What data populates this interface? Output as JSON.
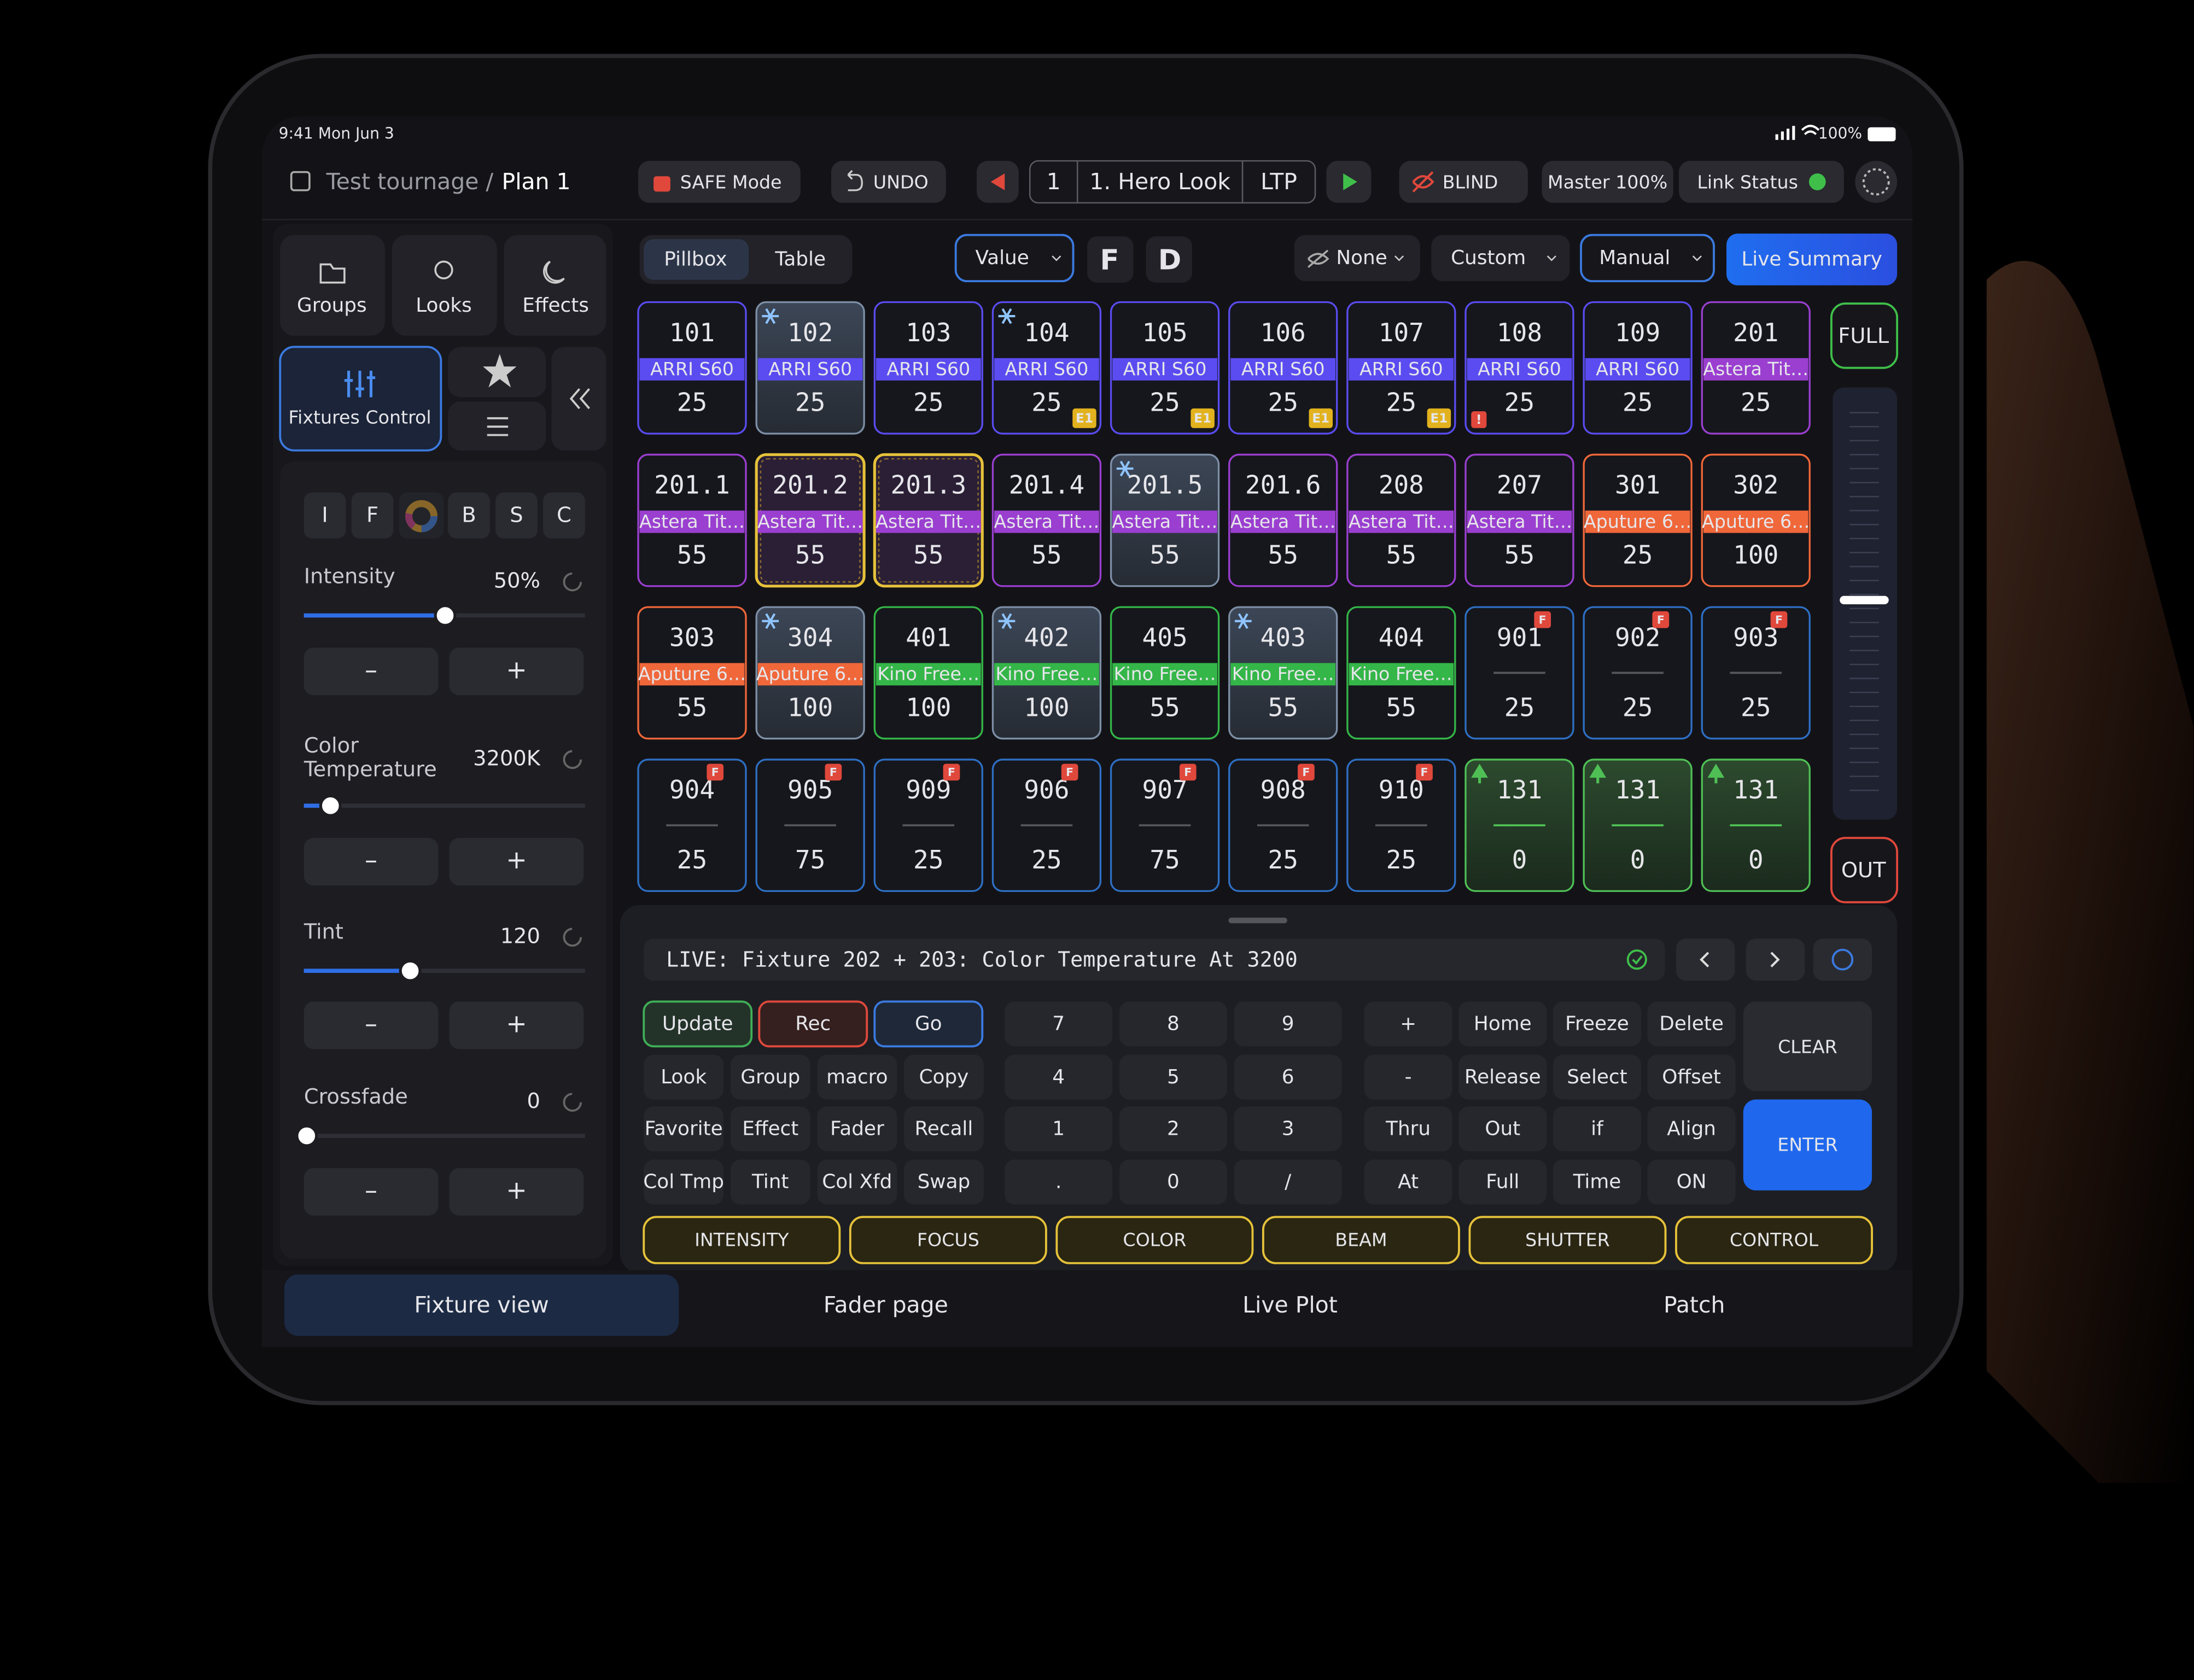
{
  "status": {
    "time": "9:41 Mon Jun 3",
    "battery": "100%"
  },
  "header": {
    "breadcrumb": "Test tournage /",
    "plan": "Plan 1",
    "safe_mode": "SAFE Mode",
    "undo": "UNDO",
    "cue_number": "1",
    "cue_name": "1. Hero Look",
    "mode": "LTP",
    "blind": "BLIND",
    "master": "Master 100%",
    "link_status": "Link Status"
  },
  "sidebar": {
    "nav": [
      "Groups",
      "Looks",
      "Effects"
    ],
    "active": "Fixtures Control",
    "tabs": [
      "I",
      "F",
      "B",
      "S",
      "C"
    ],
    "controls": [
      {
        "label": "Intensity",
        "value": "50%"
      },
      {
        "label": "Color Temperature",
        "value": "3200K"
      },
      {
        "label": "Tint",
        "value": "120"
      },
      {
        "label": "Crossfade",
        "value": "0"
      }
    ],
    "decrement": "–",
    "increment": "+"
  },
  "toolbar": {
    "views": [
      "Pillbox",
      "Table"
    ],
    "value": "Value",
    "flag_f": "F",
    "flag_d": "D",
    "none": "None",
    "custom": "Custom",
    "manual": "Manual",
    "live_summary": "Live Summary"
  },
  "fixtures": [
    {
      "id": "101",
      "type": "ARRI S60",
      "value": 25,
      "color": "#5a4cf0"
    },
    {
      "id": "102",
      "type": "ARRI S60",
      "value": 25,
      "color": "#5a4cf0"
    },
    {
      "id": "103",
      "type": "ARRI S60",
      "value": 25,
      "color": "#5a4cf0"
    },
    {
      "id": "104",
      "type": "ARRI S60",
      "value": 25,
      "color": "#5a4cf0",
      "badge": "E1"
    },
    {
      "id": "105",
      "type": "ARRI S60",
      "value": 25,
      "color": "#5a4cf0",
      "badge": "E1"
    },
    {
      "id": "106",
      "type": "ARRI S60",
      "value": 25,
      "color": "#5a4cf0",
      "badge": "E1"
    },
    {
      "id": "107",
      "type": "ARRI S60",
      "value": 25,
      "color": "#5a4cf0",
      "badge": "E1"
    },
    {
      "id": "108",
      "type": "ARRI S60",
      "value": 25,
      "color": "#5a4cf0",
      "badge": "!"
    },
    {
      "id": "109",
      "type": "ARRI S60",
      "value": 25,
      "color": "#5a4cf0"
    },
    {
      "id": "201",
      "type": "Astera Tit…",
      "value": 25,
      "color": "#9a3fd0"
    },
    {
      "id": "201.1",
      "type": "Astera Tit…",
      "value": 55,
      "color": "#9a3fd0"
    },
    {
      "id": "201.2",
      "type": "Astera Tit…",
      "value": 55,
      "color": "#9a3fd0"
    },
    {
      "id": "201.3",
      "type": "Astera Tit…",
      "value": 55,
      "color": "#9a3fd0"
    },
    {
      "id": "201.4",
      "type": "Astera Tit…",
      "value": 55,
      "color": "#9a3fd0"
    },
    {
      "id": "201.5",
      "type": "Astera Tit…",
      "value": 55,
      "color": "#9a3fd0"
    },
    {
      "id": "201.6",
      "type": "Astera Tit…",
      "value": 55,
      "color": "#9a3fd0"
    },
    {
      "id": "208",
      "type": "Astera Tit…",
      "value": 55,
      "color": "#9a3fd0"
    },
    {
      "id": "207",
      "type": "Astera Tit…",
      "value": 55,
      "color": "#9a3fd0"
    },
    {
      "id": "301",
      "type": "Aputure 6…",
      "value": 25,
      "color": "#f0673a"
    },
    {
      "id": "302",
      "type": "Aputure 6…",
      "value": 100,
      "color": "#f0673a"
    },
    {
      "id": "303",
      "type": "Aputure 6…",
      "value": 55,
      "color": "#f0673a"
    },
    {
      "id": "304",
      "type": "Aputure 6…",
      "value": 100,
      "color": "#f0673a"
    },
    {
      "id": "401",
      "type": "Kino Free…",
      "value": 100,
      "color": "#34b648"
    },
    {
      "id": "402",
      "type": "Kino Free…",
      "value": 100,
      "color": "#34b648"
    },
    {
      "id": "405",
      "type": "Kino Free…",
      "value": 55,
      "color": "#34b648"
    },
    {
      "id": "403",
      "type": "Kino Free…",
      "value": 55,
      "color": "#34b648"
    },
    {
      "id": "404",
      "type": "Kino Free…",
      "value": 55,
      "color": "#34b648"
    },
    {
      "id": "901",
      "value": 25,
      "color": "#2e6fc4",
      "badge": "F"
    },
    {
      "id": "902",
      "value": 25,
      "color": "#2e6fc4",
      "badge": "F"
    },
    {
      "id": "903",
      "value": 25,
      "color": "#2e6fc4",
      "badge": "F"
    },
    {
      "id": "904",
      "value": 25,
      "color": "#2e6fc4",
      "badge": "F"
    },
    {
      "id": "905",
      "value": 75,
      "color": "#2e6fc4",
      "badge": "F"
    },
    {
      "id": "909",
      "value": 25,
      "color": "#2e6fc4",
      "badge": "F"
    },
    {
      "id": "906",
      "value": 25,
      "color": "#2e6fc4",
      "badge": "F"
    },
    {
      "id": "907",
      "value": 75,
      "color": "#2e6fc4",
      "badge": "F"
    },
    {
      "id": "908",
      "value": 25,
      "color": "#2e6fc4",
      "badge": "F"
    },
    {
      "id": "910",
      "value": 25,
      "color": "#2e6fc4",
      "badge": "F"
    },
    {
      "id": "131",
      "value": 0,
      "color": "#4fbf55"
    },
    {
      "id": "131",
      "value": 0,
      "color": "#4fbf55"
    },
    {
      "id": "131",
      "value": 0,
      "color": "#4fbf55"
    }
  ],
  "fader": {
    "full": "FULL",
    "out": "OUT"
  },
  "command": {
    "line": "LIVE: Fixture 202 + 203: Color Temperature At 3200"
  },
  "keypad": {
    "functions": [
      [
        "Update",
        "Rec",
        "Go"
      ],
      [
        "Look",
        "Group",
        "macro",
        "Copy"
      ],
      [
        "Favorite",
        "Effect",
        "Fader",
        "Recall"
      ],
      [
        "Col Tmp",
        "Tint",
        "Col Xfd",
        "Swap"
      ]
    ],
    "numbers": [
      [
        "7",
        "8",
        "9"
      ],
      [
        "4",
        "5",
        "6"
      ],
      [
        "1",
        "2",
        "3"
      ],
      [
        ".",
        "0",
        "/"
      ]
    ],
    "operators": [
      [
        "+",
        "Home",
        "Freeze",
        "Delete"
      ],
      [
        "-",
        "Release",
        "Select",
        "Offset"
      ],
      [
        "Thru",
        "Out",
        "if",
        "Align"
      ],
      [
        "At",
        "Full",
        "Time",
        "ON"
      ]
    ],
    "clear": "CLEAR",
    "enter": "ENTER"
  },
  "attributes": [
    "INTENSITY",
    "FOCUS",
    "COLOR",
    "BEAM",
    "SHUTTER",
    "CONTROL"
  ],
  "tabs": [
    "Fixture view",
    "Fader page",
    "Live Plot",
    "Patch"
  ]
}
